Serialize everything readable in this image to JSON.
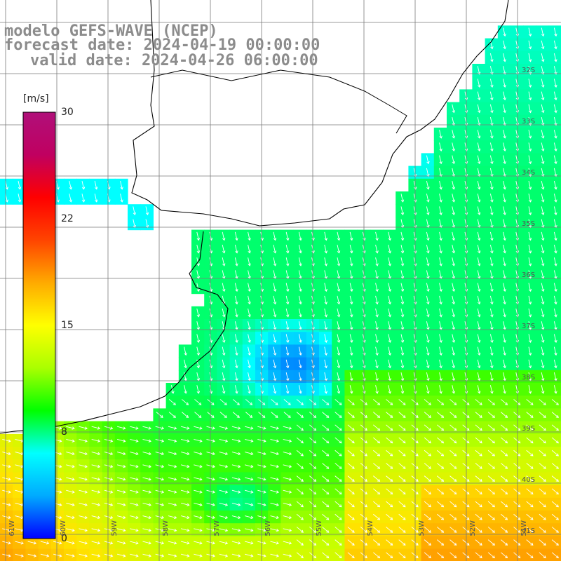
{
  "title": {
    "line1": "modelo GEFS-WAVE (NCEP)",
    "line2": "forecast date: 2024-04-19 00:00:00",
    "line3": "valid date: 2024-04-26 06:00:00"
  },
  "colorbar": {
    "unit": "[m/s]",
    "ticks": [
      {
        "label": "30",
        "value": 30
      },
      {
        "label": "22",
        "value": 22
      },
      {
        "label": "15",
        "value": 15
      },
      {
        "label": "8",
        "value": 8
      },
      {
        "label": "0",
        "value": 0
      }
    ],
    "range": [
      0,
      30
    ],
    "palette": [
      "#0000ff",
      "#00aaff",
      "#00ffff",
      "#00ff00",
      "#aaff00",
      "#ffff00",
      "#ffaa00",
      "#ff4400",
      "#ff0000",
      "#c00060",
      "#b0107a"
    ]
  },
  "lat_labels": [
    "32S",
    "33S",
    "34S",
    "35S",
    "36S",
    "37S",
    "38S",
    "39S",
    "40S",
    "41S"
  ],
  "lon_labels": [
    "61W",
    "60W",
    "59W",
    "58W",
    "57W",
    "56W",
    "55W",
    "54W",
    "53W",
    "52W",
    "51W"
  ],
  "wind_field_description_colors": {
    "coast": "#000000",
    "grid": "#808080",
    "arrow": "#ffffff"
  }
}
